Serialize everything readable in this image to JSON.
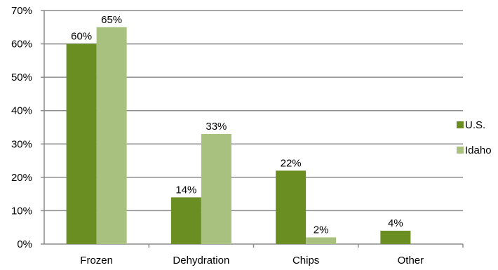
{
  "chart_data": {
    "type": "bar",
    "categories": [
      "Frozen",
      "Dehydration",
      "Chips",
      "Other"
    ],
    "series": [
      {
        "name": "U.S.",
        "values": [
          60,
          14,
          22,
          4
        ],
        "labels": [
          "60%",
          "14%",
          "22%",
          "4%"
        ],
        "color": "#6b8e23"
      },
      {
        "name": "Idaho",
        "values": [
          65,
          33,
          2,
          null
        ],
        "labels": [
          "65%",
          "33%",
          "2%",
          ""
        ],
        "color": "#a9c17e"
      }
    ],
    "ylim": [
      0,
      70
    ],
    "yticks": [
      "0%",
      "10%",
      "20%",
      "30%",
      "40%",
      "50%",
      "60%",
      "70%"
    ],
    "grid": true,
    "legend": "right"
  }
}
